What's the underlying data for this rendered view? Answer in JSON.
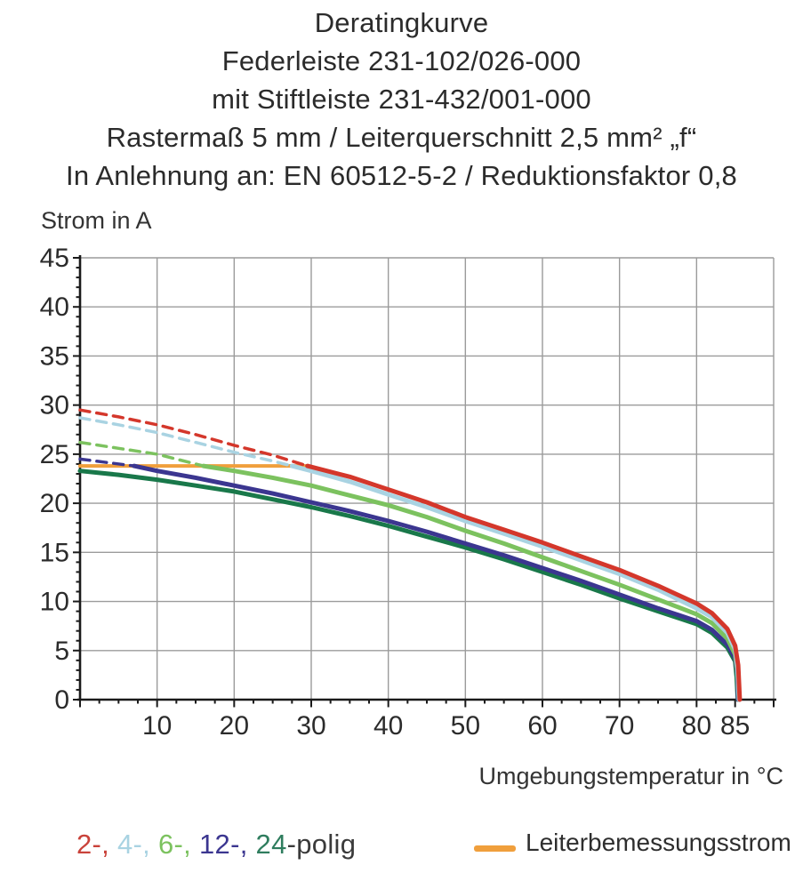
{
  "title": {
    "lines": [
      "Deratingkurve",
      "Federleiste 231-102/026-000",
      "mit Stiftleiste 231-432/001-000",
      "Rastermaß 5 mm / Leiterquerschnitt 2,5 mm² „f“",
      "In Anlehnung an: EN 60512-5-2 / Reduktionsfaktor 0,8"
    ]
  },
  "axes": {
    "y_title": "Strom in A",
    "x_title": "Umgebungstemperatur in °C"
  },
  "legend": {
    "poles": [
      {
        "text": "2-,",
        "color": "#c9423a"
      },
      {
        "text": " 4-,",
        "color": "#a9d3e2"
      },
      {
        "text": " 6-,",
        "color": "#7cc25f"
      },
      {
        "text": " 12-,",
        "color": "#3b3690"
      },
      {
        "text": " 24",
        "color": "#2f7d5e"
      },
      {
        "text": "-polig",
        "color": "#3a3a3a"
      }
    ],
    "rated_current_label": "Leiterbemessungsstrom",
    "rated_current_color": "#f09f3c"
  },
  "colors": {
    "grid": "#9b9b9b",
    "axis": "#1a1a1a",
    "text": "#2b2b2b"
  },
  "chart_data": {
    "type": "line",
    "title": "Deratingkurve",
    "xlabel": "Umgebungstemperatur in °C",
    "ylabel": "Strom in A",
    "xlim": [
      0,
      90
    ],
    "ylim": [
      0,
      45
    ],
    "grid": true,
    "legend_position": "bottom",
    "x_tick_labels": [
      10,
      20,
      30,
      40,
      50,
      60,
      70,
      80,
      85
    ],
    "y_tick_labels": [
      0,
      5,
      10,
      15,
      20,
      25,
      30,
      35,
      40,
      45
    ],
    "x_grid_step": 10,
    "y_grid_step": 5,
    "x_minor_tick_step": 2.5,
    "y_minor_tick_step": 1,
    "rated_current_line": {
      "label": "Leiterbemessungsstrom",
      "color": "#f09f3c",
      "value": 23.8,
      "x_start": 0,
      "x_end": 29.5
    },
    "series": [
      {
        "name": "24-polig",
        "color": "#19784a",
        "dashed_points": [],
        "solid_points": [
          [
            0,
            23.3
          ],
          [
            5,
            22.9
          ],
          [
            10,
            22.4
          ],
          [
            15,
            21.8
          ],
          [
            20,
            21.2
          ],
          [
            25,
            20.4
          ],
          [
            30,
            19.6
          ],
          [
            35,
            18.7
          ],
          [
            40,
            17.7
          ],
          [
            45,
            16.6
          ],
          [
            50,
            15.5
          ],
          [
            55,
            14.3
          ],
          [
            60,
            13.0
          ],
          [
            65,
            11.7
          ],
          [
            70,
            10.3
          ],
          [
            75,
            9.0
          ],
          [
            80,
            7.7
          ],
          [
            82,
            6.8
          ],
          [
            84,
            5.3
          ],
          [
            85,
            3.9
          ],
          [
            85.2,
            2.3
          ],
          [
            85.35,
            0
          ]
        ]
      },
      {
        "name": "12-polig",
        "color": "#3b3690",
        "dashed_points": [
          [
            0,
            24.5
          ],
          [
            3,
            24.2
          ],
          [
            7,
            23.8
          ]
        ],
        "solid_points": [
          [
            7,
            23.8
          ],
          [
            10,
            23.3
          ],
          [
            15,
            22.6
          ],
          [
            20,
            21.8
          ],
          [
            25,
            21.0
          ],
          [
            30,
            20.1
          ],
          [
            35,
            19.2
          ],
          [
            40,
            18.2
          ],
          [
            45,
            17.1
          ],
          [
            50,
            15.9
          ],
          [
            55,
            14.7
          ],
          [
            60,
            13.4
          ],
          [
            65,
            12.1
          ],
          [
            70,
            10.7
          ],
          [
            75,
            9.3
          ],
          [
            80,
            8.0
          ],
          [
            82,
            7.1
          ],
          [
            84,
            5.6
          ],
          [
            85,
            4.2
          ],
          [
            85.3,
            2.6
          ],
          [
            85.4,
            0
          ]
        ]
      },
      {
        "name": "6-polig",
        "color": "#7cc25f",
        "dashed_points": [
          [
            0,
            26.2
          ],
          [
            5,
            25.6
          ],
          [
            10,
            25.0
          ],
          [
            13,
            24.4
          ],
          [
            16,
            23.8
          ]
        ],
        "solid_points": [
          [
            16,
            23.8
          ],
          [
            20,
            23.3
          ],
          [
            25,
            22.6
          ],
          [
            30,
            21.8
          ],
          [
            35,
            20.8
          ],
          [
            40,
            19.8
          ],
          [
            45,
            18.6
          ],
          [
            50,
            17.2
          ],
          [
            55,
            15.9
          ],
          [
            60,
            14.5
          ],
          [
            65,
            13.1
          ],
          [
            70,
            11.7
          ],
          [
            75,
            10.2
          ],
          [
            80,
            8.7
          ],
          [
            82,
            7.8
          ],
          [
            84,
            6.2
          ],
          [
            85,
            4.6
          ],
          [
            85.3,
            2.9
          ],
          [
            85.5,
            0
          ]
        ]
      },
      {
        "name": "4-polig",
        "color": "#a9d3e2",
        "dashed_points": [
          [
            0,
            28.7
          ],
          [
            5,
            28.0
          ],
          [
            10,
            27.2
          ],
          [
            15,
            26.2
          ],
          [
            20,
            25.2
          ],
          [
            25,
            24.3
          ],
          [
            27.5,
            23.8
          ]
        ],
        "solid_points": [
          [
            27.5,
            23.8
          ],
          [
            30,
            23.3
          ],
          [
            35,
            22.2
          ],
          [
            40,
            20.9
          ],
          [
            45,
            19.6
          ],
          [
            50,
            18.2
          ],
          [
            55,
            16.9
          ],
          [
            60,
            15.6
          ],
          [
            65,
            14.2
          ],
          [
            70,
            12.8
          ],
          [
            75,
            11.2
          ],
          [
            80,
            9.3
          ],
          [
            82,
            8.4
          ],
          [
            84,
            6.8
          ],
          [
            85,
            5.1
          ],
          [
            85.3,
            3.2
          ],
          [
            85.5,
            0
          ]
        ]
      },
      {
        "name": "2-polig",
        "color": "#d4372b",
        "dashed_points": [
          [
            0,
            29.5
          ],
          [
            5,
            28.8
          ],
          [
            10,
            28.0
          ],
          [
            15,
            27.0
          ],
          [
            20,
            25.9
          ],
          [
            25,
            24.9
          ],
          [
            29.5,
            23.8
          ]
        ],
        "solid_points": [
          [
            29.5,
            23.8
          ],
          [
            35,
            22.7
          ],
          [
            40,
            21.4
          ],
          [
            45,
            20.1
          ],
          [
            50,
            18.6
          ],
          [
            55,
            17.3
          ],
          [
            60,
            16.0
          ],
          [
            65,
            14.6
          ],
          [
            70,
            13.2
          ],
          [
            75,
            11.6
          ],
          [
            80,
            9.8
          ],
          [
            82,
            8.8
          ],
          [
            84,
            7.2
          ],
          [
            85,
            5.5
          ],
          [
            85.4,
            3.5
          ],
          [
            85.6,
            0
          ]
        ]
      }
    ]
  }
}
